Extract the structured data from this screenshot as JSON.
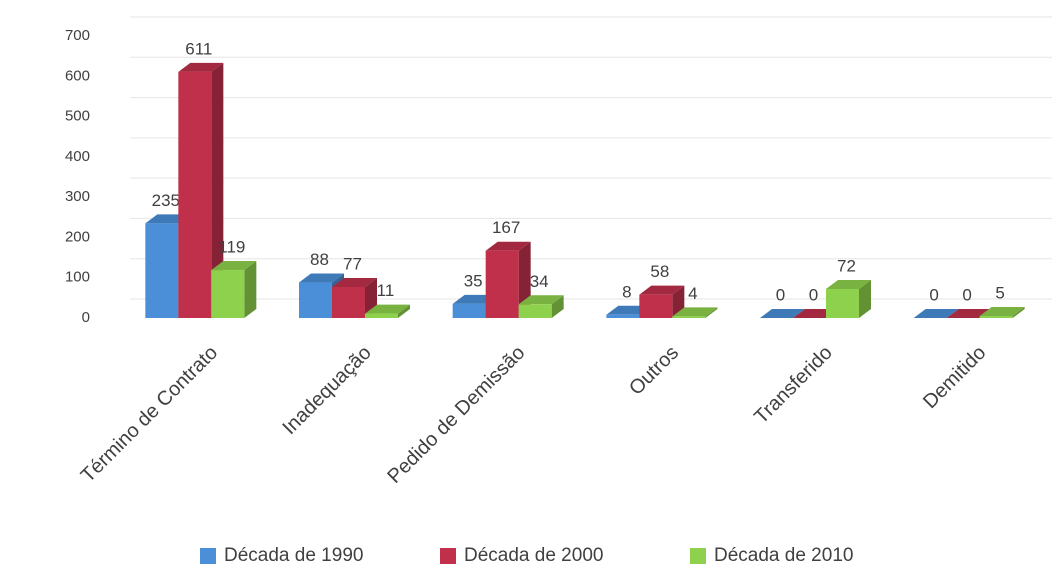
{
  "chart_data": {
    "type": "bar3d",
    "categories": [
      "Término de Contrato",
      "Inadequação",
      "Pedido de Demissão",
      "Outros",
      "Transferido",
      "Demitido"
    ],
    "series": [
      {
        "name": "Década de 1990",
        "color": "#4a8fd8",
        "values": [
          235,
          88,
          35,
          8,
          0,
          0
        ]
      },
      {
        "name": "Década de 2000",
        "color": "#c0304b",
        "values": [
          611,
          77,
          167,
          58,
          0,
          0
        ]
      },
      {
        "name": "Década de 2010",
        "color": "#8ed14c",
        "values": [
          119,
          11,
          34,
          4,
          72,
          5
        ]
      }
    ],
    "ylim": [
      0,
      700
    ],
    "yticks": [
      0,
      100,
      200,
      300,
      400,
      500,
      600,
      700
    ],
    "grid": true,
    "legend": "bottom"
  }
}
